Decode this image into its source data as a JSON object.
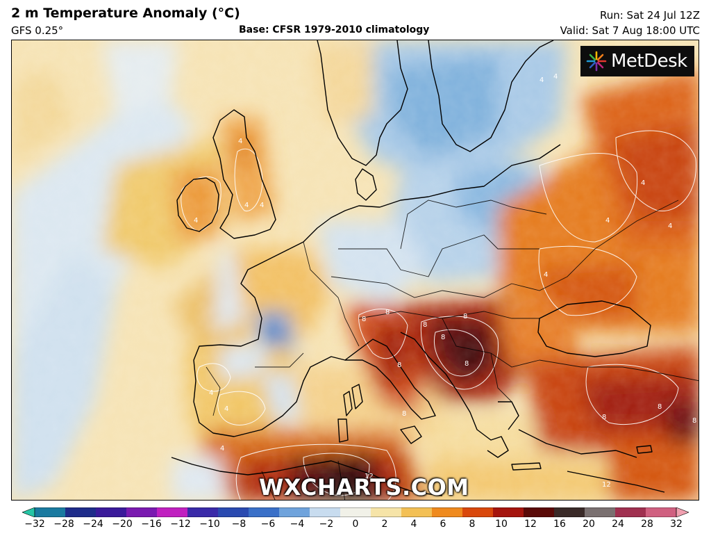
{
  "header": {
    "title": "2 m Temperature Anomaly (°C)",
    "model": "GFS 0.25°",
    "base": "Base: CFSR 1979-2010 climatology",
    "run": "Run: Sat 24 Jul 12Z",
    "valid": "Valid: Sat 7 Aug 18:00 UTC"
  },
  "logo": {
    "text": "MetDesk",
    "icon": "starburst-icon"
  },
  "watermark": "WXCHARTS.COM",
  "map": {
    "contour_labels": [
      "4",
      "4",
      "4",
      "4",
      "4",
      "4",
      "4",
      "4",
      "4",
      "4",
      "4",
      "4",
      "4",
      "8",
      "8",
      "8",
      "8",
      "8",
      "8",
      "8",
      "8",
      "8",
      "8",
      "8",
      "8",
      "12",
      "12"
    ]
  },
  "colorbar": {
    "ticks": [
      "−32",
      "−28",
      "−24",
      "−20",
      "−16",
      "−12",
      "−10",
      "−8",
      "−6",
      "−4",
      "−2",
      "0",
      "2",
      "4",
      "6",
      "8",
      "10",
      "12",
      "16",
      "20",
      "24",
      "28",
      "32"
    ],
    "colors": [
      "#26c6a6",
      "#1a7aa0",
      "#1e2c8a",
      "#3a1a9a",
      "#7a1ab0",
      "#c020c0",
      "#3a2aa8",
      "#2a4ab0",
      "#3a70c8",
      "#6fa3dc",
      "#c8dcef",
      "#f1f1e8",
      "#f6e4a8",
      "#f3c055",
      "#ef8a1e",
      "#d9480c",
      "#a5150e",
      "#5a0a08",
      "#3a2a28",
      "#7a7070",
      "#a03050",
      "#d06080",
      "#f0a0b0"
    ]
  }
}
